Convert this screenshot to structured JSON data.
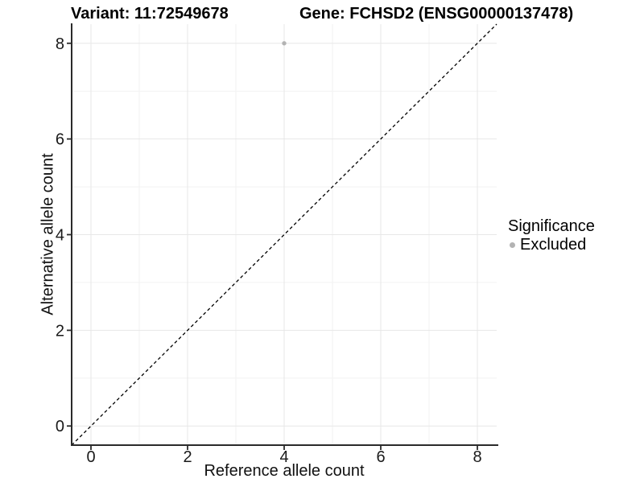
{
  "chart_data": {
    "type": "scatter",
    "title_left": "Variant: 11:72549678",
    "title_right": "Gene: FCHSD2 (ENSG00000137478)",
    "xlabel": "Reference allele count",
    "ylabel": "Alternative allele count",
    "xlim": [
      -0.4,
      8.4
    ],
    "ylim": [
      -0.4,
      8.4
    ],
    "x_ticks": [
      0,
      2,
      4,
      6,
      8
    ],
    "y_ticks": [
      0,
      2,
      4,
      6,
      8
    ],
    "x_minor_ticks": [
      1,
      3,
      5,
      7
    ],
    "y_minor_ticks": [
      1,
      3,
      5,
      7
    ],
    "grid": "major+minor",
    "legend_position": "right",
    "legend_title": "Significance",
    "series": [
      {
        "name": "Excluded",
        "color": "#b3b3b3",
        "points": [
          {
            "x": 4,
            "y": 8
          }
        ]
      }
    ],
    "reference_line": {
      "type": "identity",
      "slope": 1,
      "intercept": 0,
      "style": "dashed",
      "color": "#000000"
    },
    "colors": {
      "background": "#ffffff",
      "grid_major": "#e7e7e7",
      "grid_minor": "#f2f2f2",
      "axis_line": "#2b2b2b",
      "tick_mark": "#2b2b2b",
      "tick_label": "#1a1a1a"
    }
  }
}
